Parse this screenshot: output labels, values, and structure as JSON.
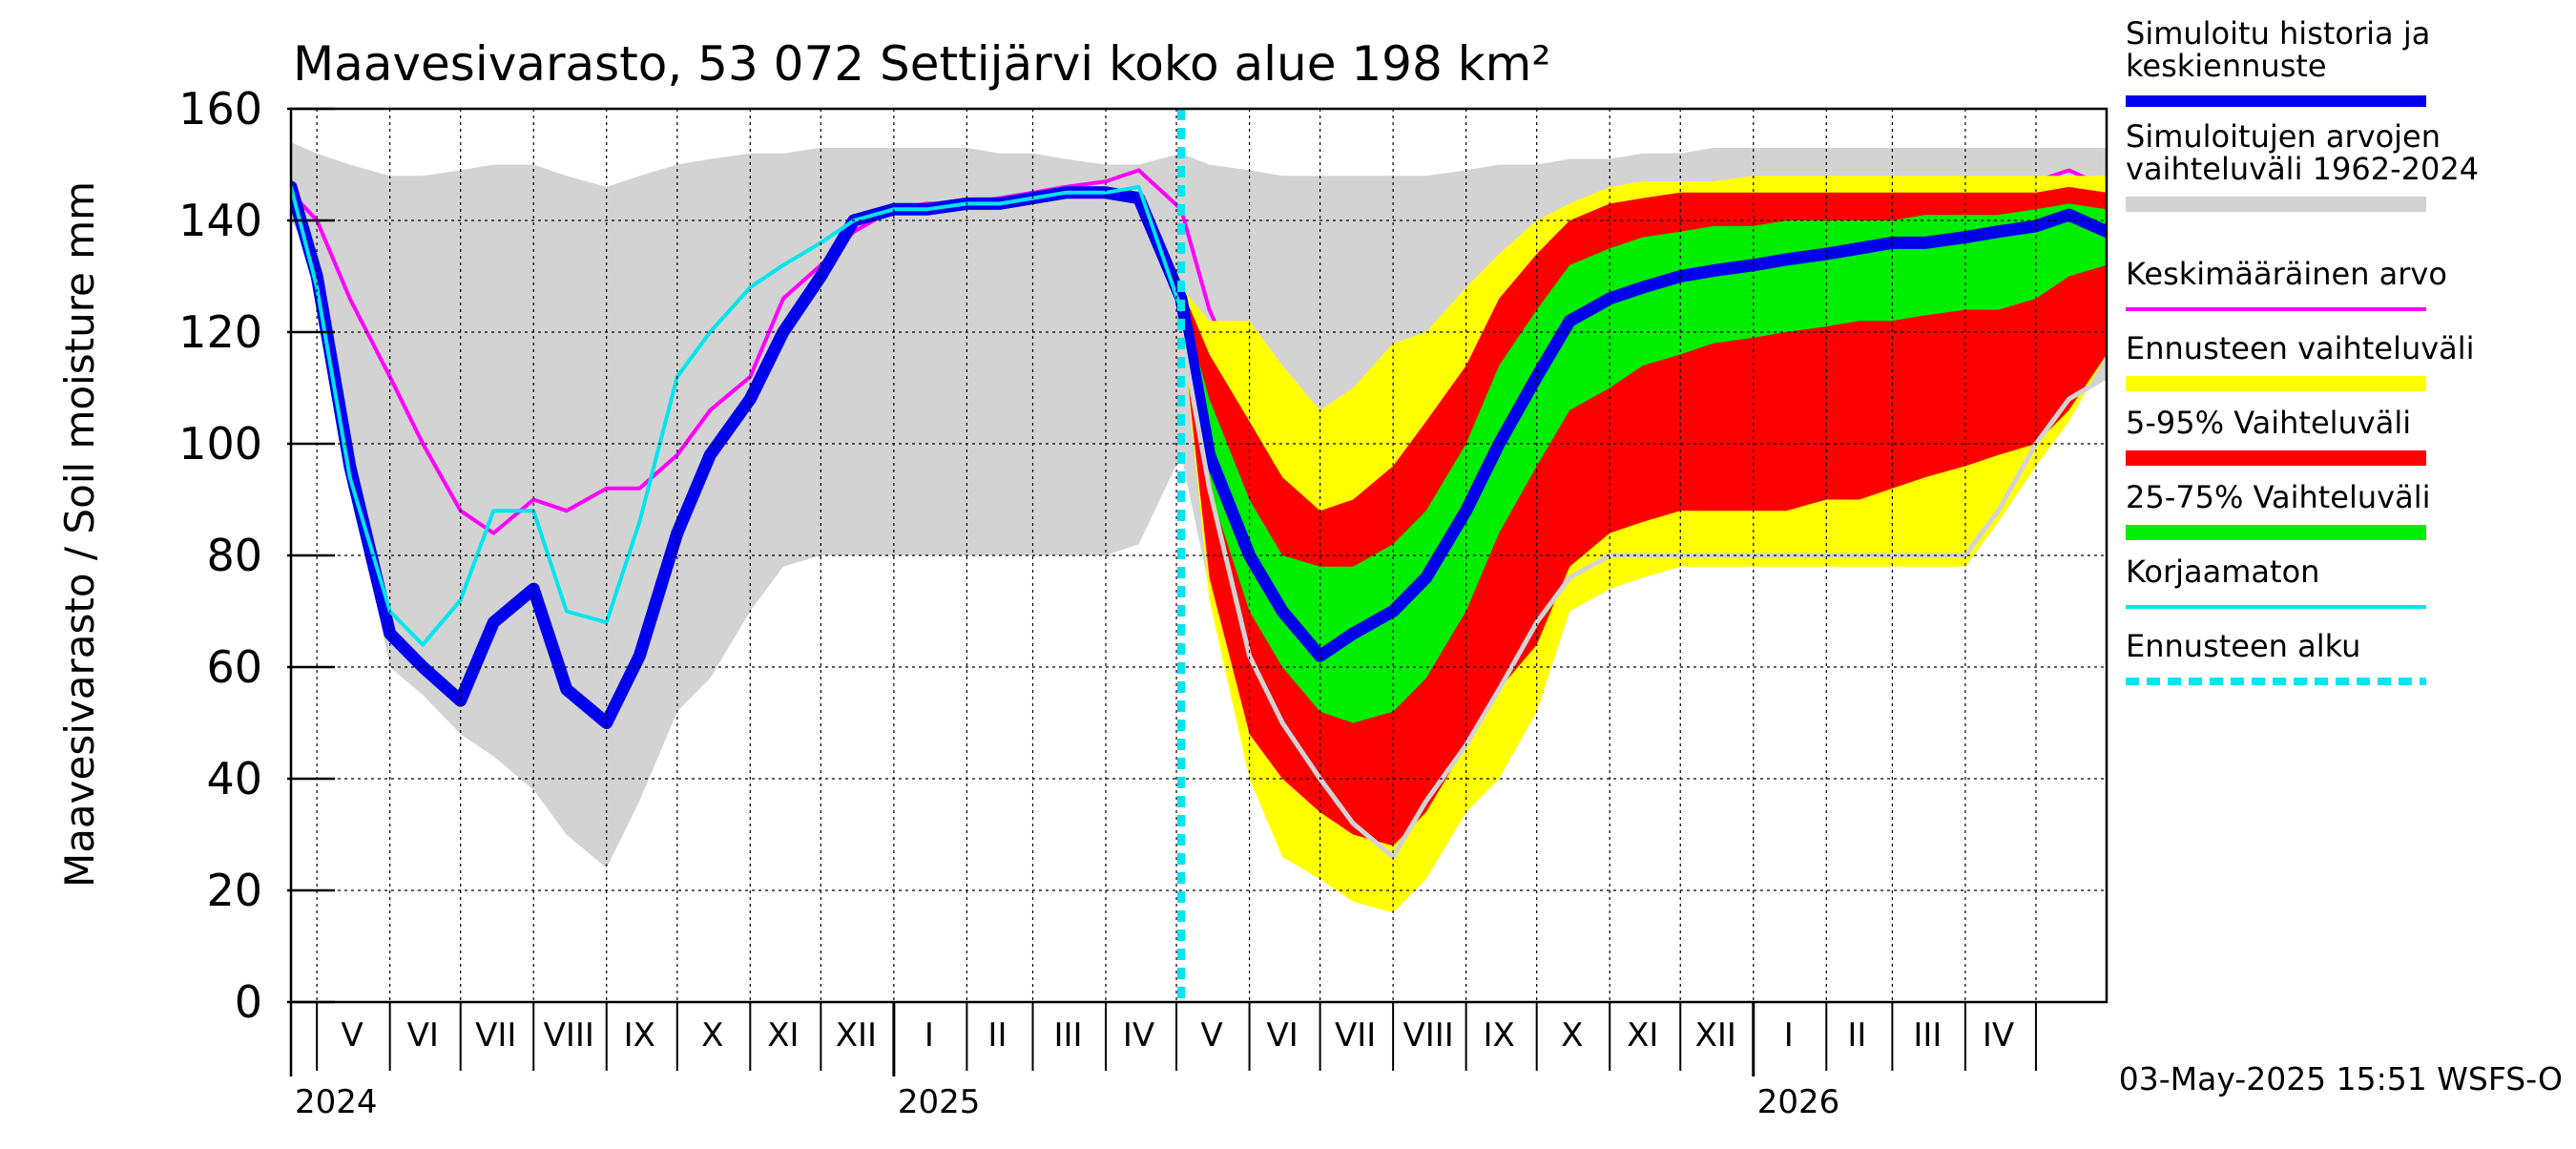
{
  "title": "Maavesivarasto, 53 072 Settijärvi koko alue 198 km²",
  "ylabel": "Maavesivarasto / Soil moisture   mm",
  "footer": "03-May-2025 15:51 WSFS-O",
  "chart_data": {
    "type": "area",
    "title": "Maavesivarasto, 53 072 Settijärvi koko alue 198 km²",
    "ylabel": "Maavesivarasto / Soil moisture   mm",
    "xlabel": "",
    "x_range": [
      "2024-04-20",
      "2026-05-31"
    ],
    "ylim": [
      0,
      160
    ],
    "y_ticks": [
      0,
      20,
      40,
      60,
      80,
      100,
      120,
      140,
      160
    ],
    "grid": true,
    "legend_position": "right",
    "forecast_start": "2025-05-03",
    "month_labels": [
      {
        "label": "V",
        "date": "2024-05-16"
      },
      {
        "label": "VI",
        "date": "2024-06-15"
      },
      {
        "label": "VII",
        "date": "2024-07-16"
      },
      {
        "label": "VIII",
        "date": "2024-08-16"
      },
      {
        "label": "IX",
        "date": "2024-09-15"
      },
      {
        "label": "X",
        "date": "2024-10-16"
      },
      {
        "label": "XI",
        "date": "2024-11-15"
      },
      {
        "label": "XII",
        "date": "2024-12-16"
      },
      {
        "label": "I",
        "date": "2025-01-16"
      },
      {
        "label": "II",
        "date": "2025-02-14"
      },
      {
        "label": "III",
        "date": "2025-03-16"
      },
      {
        "label": "IV",
        "date": "2025-04-15"
      },
      {
        "label": "V",
        "date": "2025-05-16"
      },
      {
        "label": "VI",
        "date": "2025-06-15"
      },
      {
        "label": "VII",
        "date": "2025-07-16"
      },
      {
        "label": "VIII",
        "date": "2025-08-16"
      },
      {
        "label": "IX",
        "date": "2025-09-15"
      },
      {
        "label": "X",
        "date": "2025-10-16"
      },
      {
        "label": "XI",
        "date": "2025-11-15"
      },
      {
        "label": "XII",
        "date": "2025-12-16"
      },
      {
        "label": "I",
        "date": "2026-01-16"
      },
      {
        "label": "II",
        "date": "2026-02-14"
      },
      {
        "label": "III",
        "date": "2026-03-16"
      },
      {
        "label": "IV",
        "date": "2026-04-15"
      }
    ],
    "year_labels": [
      {
        "label": "2024",
        "date": "2024-04-20"
      },
      {
        "label": "2025",
        "date": "2025-01-01"
      },
      {
        "label": "2026",
        "date": "2026-01-01"
      }
    ],
    "legend": [
      {
        "label": "Simuloitu historia ja keskiennuste",
        "color": "#0000ee",
        "kind": "line"
      },
      {
        "label": "Simuloitujen arvojen vaihteluväli 1962-2024",
        "color": "#d3d3d3",
        "kind": "band"
      },
      {
        "label": "Keskimääräinen arvo",
        "color": "#ff00ff",
        "kind": "line"
      },
      {
        "label": "Ennusteen vaihteluväli",
        "color": "#ffff00",
        "kind": "band"
      },
      {
        "label": "5-95% Vaihteluväli",
        "color": "#ff0000",
        "kind": "band"
      },
      {
        "label": "25-75% Vaihteluväli",
        "color": "#00ee00",
        "kind": "band"
      },
      {
        "label": "Korjaamaton",
        "color": "#00e5ee",
        "kind": "line"
      },
      {
        "label": "Ennusteen alku",
        "color": "#00e5ee",
        "kind": "dashed"
      }
    ],
    "x": [
      "2024-04-20",
      "2024-05-01",
      "2024-05-15",
      "2024-06-01",
      "2024-06-15",
      "2024-07-01",
      "2024-07-15",
      "2024-08-01",
      "2024-08-15",
      "2024-09-01",
      "2024-09-15",
      "2024-10-01",
      "2024-10-15",
      "2024-11-01",
      "2024-11-15",
      "2024-12-01",
      "2024-12-15",
      "2025-01-01",
      "2025-01-15",
      "2025-02-01",
      "2025-02-15",
      "2025-03-01",
      "2025-03-15",
      "2025-04-01",
      "2025-04-15",
      "2025-05-03",
      "2025-05-15",
      "2025-06-01",
      "2025-06-15",
      "2025-07-01",
      "2025-07-15",
      "2025-08-01",
      "2025-08-15",
      "2025-09-01",
      "2025-09-15",
      "2025-10-01",
      "2025-10-15",
      "2025-11-01",
      "2025-11-15",
      "2025-12-01",
      "2025-12-15",
      "2026-01-01",
      "2026-01-15",
      "2026-02-01",
      "2026-02-15",
      "2026-03-01",
      "2026-03-15",
      "2026-04-01",
      "2026-04-15",
      "2026-05-01",
      "2026-05-15",
      "2026-05-31"
    ],
    "series": [
      {
        "name": "Simuloitujen arvojen vaihteluväli 1962-2024",
        "color": "#d3d3d3",
        "type": "band",
        "low": [
          140,
          132,
          95,
          60,
          55,
          48,
          44,
          38,
          30,
          24,
          36,
          52,
          58,
          70,
          78,
          80,
          80,
          80,
          80,
          80,
          80,
          80,
          80,
          80,
          82,
          98,
          74,
          52,
          34,
          30,
          28,
          26,
          26,
          36,
          52,
          64,
          74,
          78,
          80,
          80,
          80,
          80,
          80,
          80,
          80,
          80,
          80,
          80,
          88,
          100,
          108,
          112
        ],
        "high": [
          154,
          152,
          150,
          148,
          148,
          149,
          150,
          150,
          148,
          146,
          148,
          150,
          151,
          152,
          152,
          153,
          153,
          153,
          153,
          153,
          152,
          152,
          151,
          150,
          150,
          152,
          150,
          149,
          148,
          148,
          148,
          148,
          148,
          149,
          150,
          150,
          151,
          151,
          152,
          152,
          153,
          153,
          153,
          153,
          153,
          153,
          153,
          153,
          153,
          153,
          153,
          153
        ]
      },
      {
        "name": "Keskimääräinen arvo",
        "color": "#ff00ff",
        "type": "line",
        "values": [
          145,
          140,
          126,
          112,
          100,
          88,
          84,
          90,
          88,
          92,
          92,
          98,
          106,
          112,
          126,
          132,
          138,
          142,
          143,
          143,
          144,
          145,
          146,
          147,
          149,
          142,
          124,
          108,
          93,
          86,
          88,
          90,
          94,
          104,
          118,
          128,
          134,
          138,
          140,
          141,
          142,
          142,
          143,
          143,
          143,
          143,
          144,
          145,
          146,
          147,
          149,
          146
        ]
      },
      {
        "name": "Ennusteen vaihteluväli",
        "color": "#ffff00",
        "type": "band",
        "low": [
          null,
          null,
          null,
          null,
          null,
          null,
          null,
          null,
          null,
          null,
          null,
          null,
          null,
          null,
          null,
          null,
          null,
          null,
          null,
          null,
          null,
          null,
          null,
          null,
          null,
          122,
          72,
          40,
          26,
          22,
          18,
          16,
          22,
          34,
          40,
          52,
          70,
          74,
          76,
          78,
          78,
          78,
          78,
          78,
          78,
          78,
          78,
          78,
          86,
          96,
          104,
          116
        ],
        "high": [
          null,
          null,
          null,
          null,
          null,
          null,
          null,
          null,
          null,
          null,
          null,
          null,
          null,
          null,
          null,
          null,
          null,
          null,
          null,
          null,
          null,
          null,
          null,
          null,
          null,
          128,
          122,
          122,
          114,
          106,
          110,
          118,
          120,
          128,
          134,
          140,
          143,
          146,
          147,
          147,
          147,
          148,
          148,
          148,
          148,
          148,
          148,
          148,
          148,
          148,
          148,
          148
        ]
      },
      {
        "name": "5-95% Vaihteluväli",
        "color": "#ff0000",
        "type": "band",
        "low": [
          null,
          null,
          null,
          null,
          null,
          null,
          null,
          null,
          null,
          null,
          null,
          null,
          null,
          null,
          null,
          null,
          null,
          null,
          null,
          null,
          null,
          null,
          null,
          null,
          null,
          122,
          76,
          48,
          40,
          34,
          30,
          28,
          34,
          46,
          56,
          64,
          78,
          84,
          86,
          88,
          88,
          88,
          88,
          90,
          90,
          92,
          94,
          96,
          98,
          100,
          106,
          116
        ],
        "high": [
          null,
          null,
          null,
          null,
          null,
          null,
          null,
          null,
          null,
          null,
          null,
          null,
          null,
          null,
          null,
          null,
          null,
          null,
          null,
          null,
          null,
          null,
          null,
          null,
          null,
          128,
          116,
          104,
          94,
          88,
          90,
          96,
          104,
          114,
          126,
          134,
          140,
          143,
          144,
          145,
          145,
          145,
          145,
          145,
          145,
          145,
          145,
          145,
          145,
          145,
          146,
          145
        ]
      },
      {
        "name": "25-75% Vaihteluväli",
        "color": "#00ee00",
        "type": "band",
        "low": [
          null,
          null,
          null,
          null,
          null,
          null,
          null,
          null,
          null,
          null,
          null,
          null,
          null,
          null,
          null,
          null,
          null,
          null,
          null,
          null,
          null,
          null,
          null,
          null,
          null,
          124,
          92,
          70,
          60,
          52,
          50,
          52,
          58,
          70,
          84,
          96,
          106,
          110,
          114,
          116,
          118,
          119,
          120,
          121,
          122,
          122,
          123,
          124,
          124,
          126,
          130,
          132
        ],
        "high": [
          null,
          null,
          null,
          null,
          null,
          null,
          null,
          null,
          null,
          null,
          null,
          null,
          null,
          null,
          null,
          null,
          null,
          null,
          null,
          null,
          null,
          null,
          null,
          null,
          null,
          126,
          108,
          90,
          80,
          78,
          78,
          82,
          88,
          100,
          114,
          124,
          132,
          135,
          137,
          138,
          139,
          139,
          140,
          140,
          140,
          140,
          141,
          141,
          141,
          142,
          143,
          142
        ]
      },
      {
        "name": "Simuloitu historia ja keskiennuste",
        "color": "#0000ee",
        "type": "line",
        "values": [
          146,
          130,
          96,
          66,
          60,
          54,
          68,
          74,
          56,
          50,
          62,
          84,
          98,
          108,
          120,
          130,
          140,
          142,
          142,
          143,
          143,
          144,
          145,
          145,
          144,
          126,
          98,
          80,
          70,
          62,
          66,
          70,
          76,
          88,
          100,
          112,
          122,
          126,
          128,
          130,
          131,
          132,
          133,
          134,
          135,
          136,
          136,
          137,
          138,
          139,
          141,
          138
        ]
      },
      {
        "name": "Korjaamaton",
        "color": "#00e5ee",
        "type": "line",
        "values": [
          146,
          128,
          94,
          70,
          64,
          72,
          88,
          88,
          70,
          68,
          86,
          112,
          120,
          128,
          132,
          136,
          140,
          142,
          142,
          143,
          143,
          144,
          145,
          145,
          146,
          124,
          null,
          null,
          null,
          null,
          null,
          null,
          null,
          null,
          null,
          null,
          null,
          null,
          null,
          null,
          null,
          null,
          null,
          null,
          null,
          null,
          null,
          null,
          null,
          null,
          null,
          null
        ]
      },
      {
        "name": "",
        "color": "#d3d3d3",
        "type": "line",
        "values": [
          null,
          null,
          null,
          null,
          null,
          null,
          null,
          null,
          null,
          null,
          null,
          null,
          null,
          null,
          null,
          null,
          null,
          null,
          null,
          null,
          null,
          null,
          null,
          null,
          null,
          120,
          92,
          62,
          50,
          40,
          32,
          26,
          36,
          46,
          56,
          68,
          76,
          80,
          80,
          80,
          80,
          80,
          80,
          80,
          80,
          80,
          80,
          80,
          88,
          100,
          108,
          112
        ]
      }
    ]
  }
}
